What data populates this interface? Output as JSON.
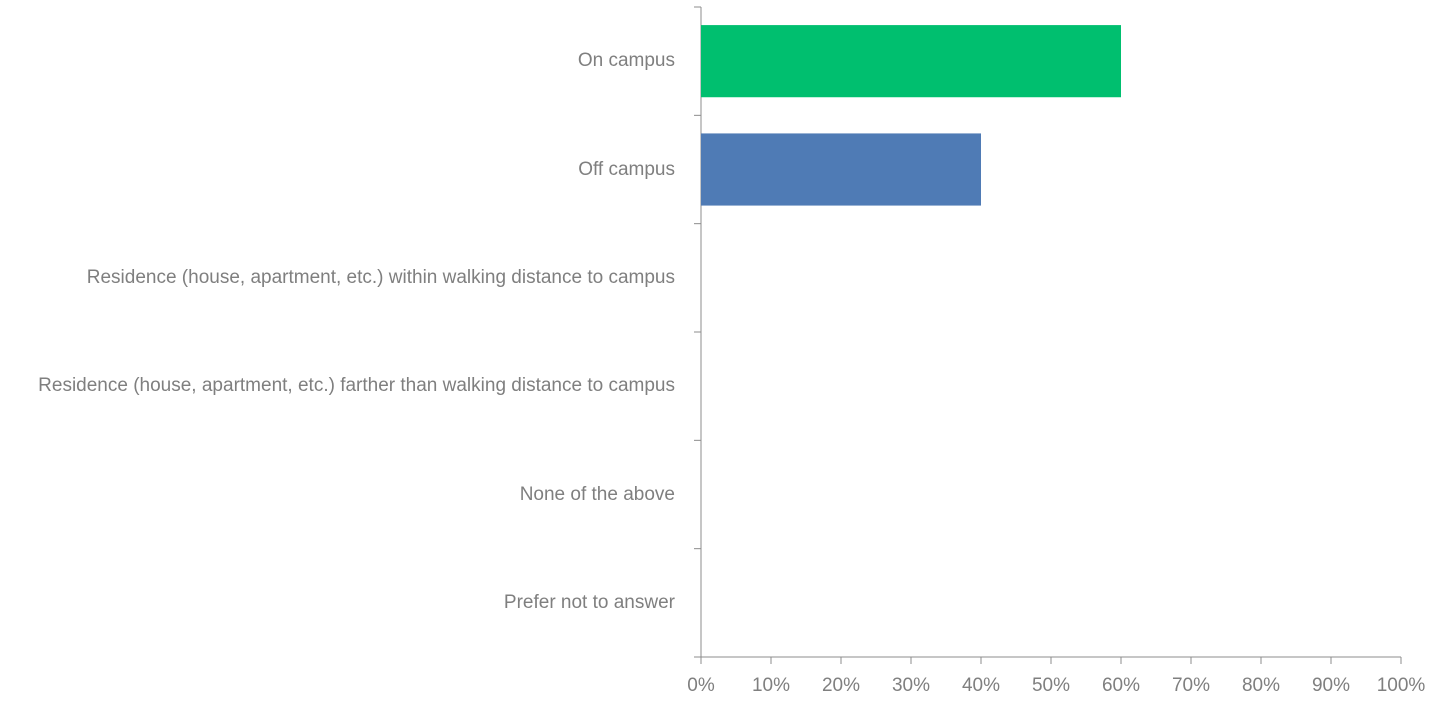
{
  "chart_data": {
    "type": "hbar",
    "categories": [
      "On campus",
      "Off campus",
      "Residence (house, apartment, etc.) within walking distance to campus",
      "Residence (house, apartment, etc.) farther than walking distance to campus",
      "None of the above",
      "Prefer not to answer"
    ],
    "values": [
      60,
      40,
      0,
      0,
      0,
      0
    ],
    "colors": [
      "#00bf6f",
      "#4f7bb5",
      "#4f7bb5",
      "#4f7bb5",
      "#4f7bb5",
      "#4f7bb5"
    ],
    "xlim": [
      0,
      100
    ],
    "xticks": [
      {
        "value": 0,
        "label": "0%"
      },
      {
        "value": 10,
        "label": "10%"
      },
      {
        "value": 20,
        "label": "20%"
      },
      {
        "value": 30,
        "label": "30%"
      },
      {
        "value": 40,
        "label": "40%"
      },
      {
        "value": 50,
        "label": "50%"
      },
      {
        "value": 60,
        "label": "60%"
      },
      {
        "value": 70,
        "label": "70%"
      },
      {
        "value": 80,
        "label": "80%"
      },
      {
        "value": 90,
        "label": "90%"
      },
      {
        "value": 100,
        "label": "100%"
      }
    ],
    "grid": false
  }
}
